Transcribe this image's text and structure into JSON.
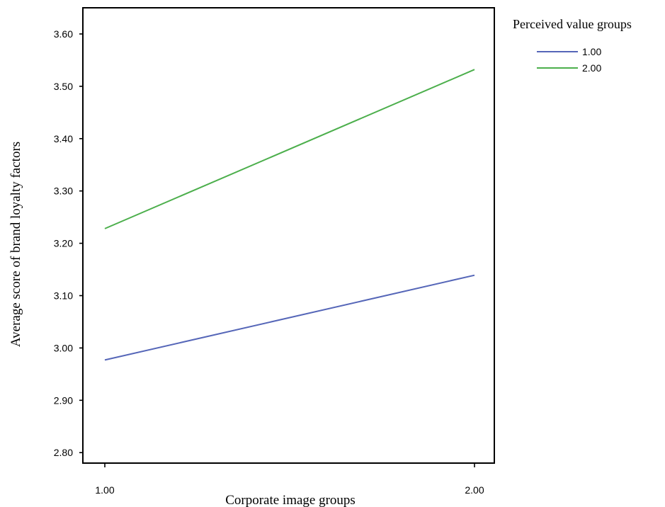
{
  "chart_data": {
    "type": "line",
    "xlabel": "Corporate image groups",
    "ylabel": "Average score of brand loyalty factors",
    "categories": [
      "1.00",
      "2.00"
    ],
    "ylim": [
      2.78,
      3.65
    ],
    "yticks": [
      "2.80",
      "2.90",
      "3.00",
      "3.10",
      "3.20",
      "3.30",
      "3.40",
      "3.50",
      "3.60"
    ],
    "grid": false,
    "legend": {
      "title": "Perceived value groups",
      "placement": "top-right outside plot"
    },
    "series": [
      {
        "name": "1.00",
        "values": [
          2.977,
          3.139
        ],
        "color": "#5566b8"
      },
      {
        "name": "2.00",
        "values": [
          3.228,
          3.532
        ],
        "color": "#4caf4c"
      }
    ]
  }
}
